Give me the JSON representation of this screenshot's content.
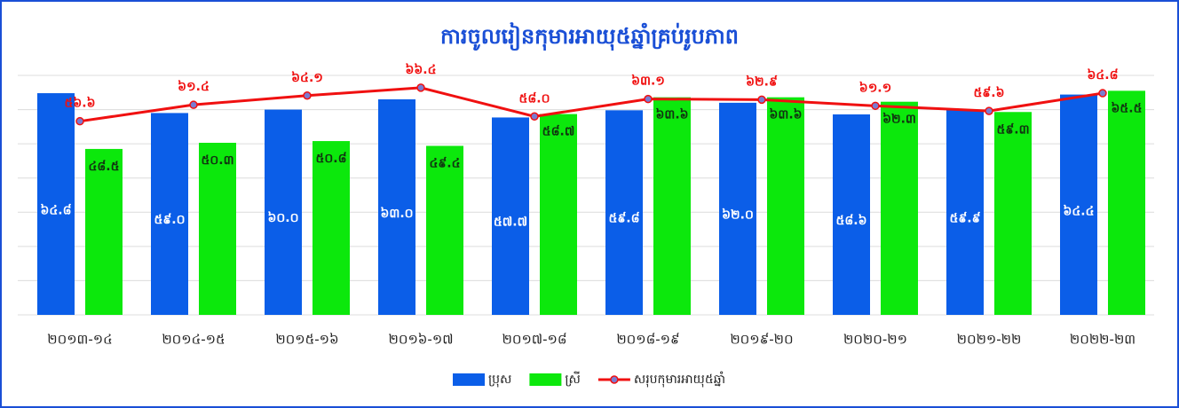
{
  "chart_data": {
    "type": "bar_line",
    "title": "ការចូលរៀនកុមារអាយុ៥ឆ្នាំគ្រប់រូបភាព",
    "categories": [
      "២០១៣-១៤",
      "២០១៤-១៥",
      "២០១៥-១៦",
      "២០១៦-១៧",
      "២០១៧-១៨",
      "២០១៨-១៩",
      "២០១៩-២០",
      "២០២០-២១",
      "២០២១-២២",
      "២០២២-២៣"
    ],
    "series": [
      {
        "name": "ប្រុស",
        "type": "bar",
        "color": "#0b5ee8",
        "values": [
          64.8,
          59.0,
          60.0,
          63.0,
          57.7,
          59.8,
          62.0,
          58.6,
          59.9,
          64.4
        ],
        "value_labels": [
          "៦៤.៨",
          "៥៩.០",
          "៦០.០",
          "៦៣.០",
          "៥៧.៧",
          "៥៩.៨",
          "៦២.០",
          "៥៨.៦",
          "៥៩.៩",
          "៦៤.៤"
        ]
      },
      {
        "name": "ស្រី",
        "type": "bar",
        "color": "#0ce80c",
        "values": [
          48.5,
          50.3,
          50.8,
          49.4,
          58.7,
          63.6,
          63.6,
          62.3,
          59.3,
          65.5
        ],
        "value_labels": [
          "៤៨.៥",
          "៥០.៣",
          "៥០.៨",
          "៤៩.៤",
          "៥៨.៧",
          "៦៣.៦",
          "៦៣.៦",
          "៦២.៣",
          "៥៩.៣",
          "៦៥.៥"
        ]
      },
      {
        "name": "សរុបកុមារអាយុ៥ឆ្នាំ",
        "type": "line",
        "color": "#f01010",
        "values": [
          56.6,
          61.4,
          64.1,
          66.4,
          58.0,
          63.1,
          62.9,
          61.1,
          59.6,
          64.8
        ],
        "value_labels": [
          "៥៦.៦",
          "៦១.៤",
          "៦៤.១",
          "៦៦.៤",
          "៥៨.០",
          "៦៣.១",
          "៦២.៩",
          "៦១.១",
          "៥៩.៦",
          "៦៤.៨"
        ]
      }
    ],
    "ylim": [
      0,
      70
    ],
    "yticks": [
      0,
      10,
      20,
      30,
      40,
      50,
      60,
      70
    ],
    "grid": true,
    "legend": "bottom"
  }
}
